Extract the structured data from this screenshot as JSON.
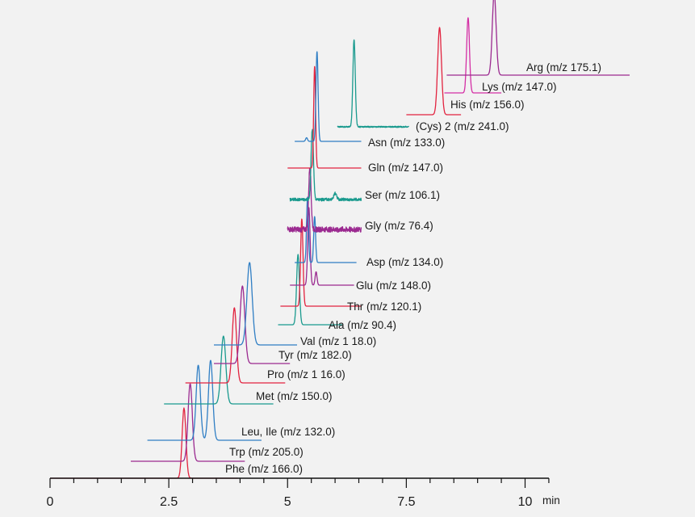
{
  "chart_data": {
    "type": "line",
    "title": "",
    "xlabel": "",
    "ylabel": "",
    "x_unit": "min",
    "xlim": [
      0,
      10.5
    ],
    "grid": false,
    "legend": "none",
    "x_ticks": [
      {
        "value": 0,
        "label": "0"
      },
      {
        "value": 2.5,
        "label": "2.5"
      },
      {
        "value": 5,
        "label": "5"
      },
      {
        "value": 7.5,
        "label": "7.5"
      },
      {
        "value": 10,
        "label": "10"
      }
    ],
    "minor_tick_step": 0.5,
    "series": [
      {
        "name": "Phe (m/z 166.0)",
        "color": "#e2233f",
        "x_start": 0.0,
        "x_end": 3.95,
        "rt": 2.82,
        "height": 2.9,
        "width": 0.04,
        "noise": 0,
        "extra_peaks": []
      },
      {
        "name": "Trp (m/z 205.0)",
        "color": "#9b2a90",
        "x_start": 1.7,
        "x_end": 4.1,
        "rt": 2.95,
        "height": 3.2,
        "width": 0.045,
        "noise": 0,
        "extra_peaks": []
      },
      {
        "name": "Leu, Ile (m/z 132.0)",
        "color": "#2f7ec4",
        "x_start": 2.05,
        "x_end": 4.45,
        "rt": 3.12,
        "height": 3.1,
        "width": 0.045,
        "noise": 0,
        "extra_peaks": [
          {
            "rt": 3.38,
            "height": 3.3,
            "width": 0.045
          }
        ]
      },
      {
        "name": "Met (m/z 150.0)",
        "color": "#1a9a8e",
        "x_start": 2.4,
        "x_end": 4.7,
        "rt": 3.65,
        "height": 2.8,
        "width": 0.05,
        "noise": 0,
        "extra_peaks": []
      },
      {
        "name": "Pro (m/z 1 16.0)",
        "color": "#e2233f",
        "x_start": 2.85,
        "x_end": 4.95,
        "rt": 3.88,
        "height": 3.1,
        "width": 0.045,
        "noise": 0,
        "extra_peaks": []
      },
      {
        "name": "Tyr (m/z 182.0)",
        "color": "#9b2a90",
        "x_start": 3.45,
        "x_end": 5.05,
        "rt": 4.05,
        "height": 3.2,
        "width": 0.05,
        "noise": 0,
        "extra_peaks": []
      },
      {
        "name": "Val (m/z 1 18.0)",
        "color": "#2f7ec4",
        "x_start": 3.45,
        "x_end": 5.2,
        "rt": 4.2,
        "height": 3.4,
        "width": 0.055,
        "noise": 0,
        "extra_peaks": []
      },
      {
        "name": "Ala (m/z 90.4)",
        "color": "#1a9a8e",
        "x_start": 4.8,
        "x_end": 6.15,
        "rt": 5.22,
        "height": 2.9,
        "width": 0.03,
        "noise": 0,
        "extra_peaks": []
      },
      {
        "name": "Thr (m/z 120.1)",
        "color": "#e2233f",
        "x_start": 4.85,
        "x_end": 6.55,
        "rt": 5.3,
        "height": 3.6,
        "width": 0.025,
        "noise": 0,
        "extra_peaks": []
      },
      {
        "name": "Glu (m/z 148.0)",
        "color": "#9b2a90",
        "x_start": 5.05,
        "x_end": 6.4,
        "rt": 5.45,
        "height": 3.2,
        "width": 0.025,
        "noise": 0,
        "extra_peaks": [
          {
            "rt": 5.6,
            "height": 0.55,
            "width": 0.02
          }
        ]
      },
      {
        "name": "Asp (m/z 134.0)",
        "color": "#2f7ec4",
        "x_start": 5.15,
        "x_end": 6.45,
        "rt": 5.42,
        "height": 2.7,
        "width": 0.02,
        "noise": 0,
        "extra_peaks": [
          {
            "rt": 5.57,
            "height": 1.9,
            "width": 0.02
          }
        ]
      },
      {
        "name": "Gly (m/z 76.4)",
        "color": "#9b2a90",
        "x_start": 5.0,
        "x_end": 6.55,
        "rt": 5.47,
        "height": 2.6,
        "width": 0.025,
        "noise": 0.22,
        "extra_peaks": []
      },
      {
        "name": "Ser (m/z 106.1)",
        "color": "#1a9a8e",
        "x_start": 5.05,
        "x_end": 6.55,
        "rt": 5.52,
        "height": 2.9,
        "width": 0.025,
        "noise": 0.12,
        "extra_peaks": [
          {
            "rt": 6.0,
            "height": 0.25,
            "width": 0.03
          }
        ]
      },
      {
        "name": "Gln (m/z 147.0)",
        "color": "#e2233f",
        "x_start": 5.0,
        "x_end": 6.55,
        "rt": 5.57,
        "height": 4.2,
        "width": 0.02,
        "noise": 0,
        "extra_peaks": []
      },
      {
        "name": "Asn (m/z 133.0)",
        "color": "#2f7ec4",
        "x_start": 5.15,
        "x_end": 6.55,
        "rt": 5.62,
        "height": 3.7,
        "width": 0.022,
        "noise": 0,
        "extra_peaks": [
          {
            "rt": 5.4,
            "height": 0.15,
            "width": 0.02
          }
        ]
      },
      {
        "name": "(Cys)  2 (m/z 241.0)",
        "color": "#1a9a8e",
        "x_start": 6.05,
        "x_end": 7.55,
        "rt": 6.4,
        "height": 3.6,
        "width": 0.025,
        "noise": 0.05,
        "extra_peaks": []
      },
      {
        "name": "His (m/z 156.0)",
        "color": "#e2233f",
        "x_start": 7.5,
        "x_end": 8.65,
        "rt": 8.2,
        "height": 3.6,
        "width": 0.04,
        "noise": 0,
        "extra_peaks": []
      },
      {
        "name": "Lys (m/z 147.0)",
        "color": "#d42fa5",
        "x_start": 8.3,
        "x_end": 9.5,
        "rt": 8.8,
        "height": 3.1,
        "width": 0.03,
        "noise": 0,
        "extra_peaks": []
      },
      {
        "name": "Arg (m/z 175.1)",
        "color": "#9b2a90",
        "x_start": 8.35,
        "x_end": 12.2,
        "rt": 9.35,
        "height": 3.4,
        "width": 0.04,
        "noise": 0,
        "extra_peaks": []
      }
    ]
  }
}
